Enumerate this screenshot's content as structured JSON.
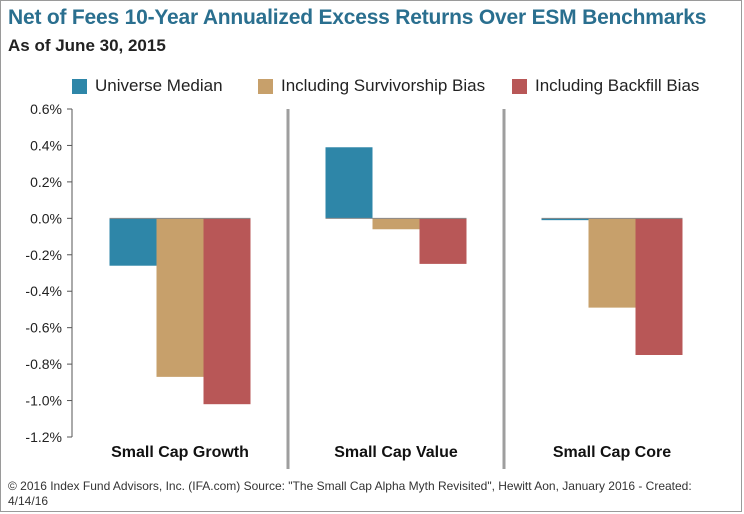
{
  "header": {
    "title": "Net of Fees 10-Year Annualized Excess Returns Over ESM Benchmarks",
    "subtitle": "As of June 30, 2015"
  },
  "footer": {
    "note": "© 2016 Index Fund Advisors, Inc. (IFA.com)   Source: \"The Small Cap Alpha Myth Revisited\", Hewitt Aon, January 2016 - Created: 4/14/16"
  },
  "chart_data": {
    "type": "bar",
    "categories": [
      "Small Cap Growth",
      "Small Cap Value",
      "Small Cap Core"
    ],
    "series": [
      {
        "name": "Universe Median",
        "color": "#2e86a8",
        "values": [
          -0.26,
          0.39,
          -0.01
        ]
      },
      {
        "name": "Including Survivorship Bias",
        "color": "#c7a06b",
        "values": [
          -0.87,
          -0.06,
          -0.49
        ]
      },
      {
        "name": "Including Backfill Bias",
        "color": "#b85757",
        "values": [
          -1.02,
          -0.25,
          -0.75
        ]
      }
    ],
    "yticks": [
      "0.6%",
      "0.4%",
      "0.2%",
      "0.0%",
      "-0.2%",
      "-0.4%",
      "-0.6%",
      "-0.8%",
      "-1.0%",
      "-1.2%"
    ],
    "ylim": [
      -1.2,
      0.6
    ],
    "xlabel": "",
    "ylabel": "",
    "legend_position": "top",
    "grid": false,
    "category_separators": true
  }
}
